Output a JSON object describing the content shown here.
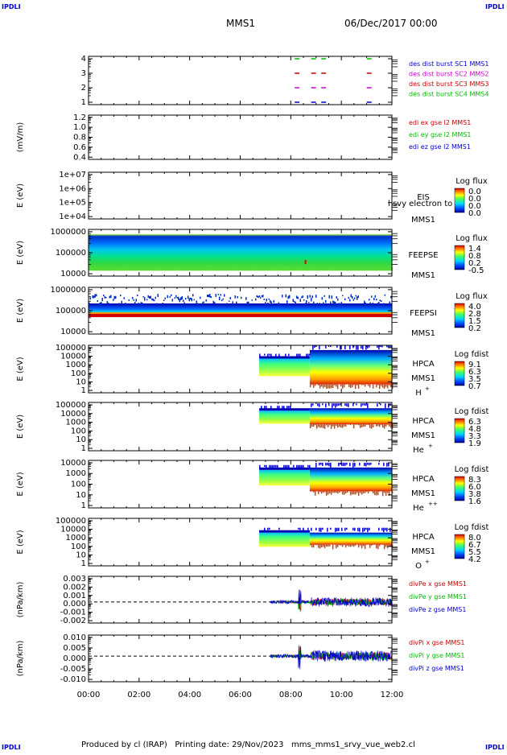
{
  "corner_labels": {
    "tl": "IPDLI",
    "tr": "IPDLI",
    "bl": "IPDLI",
    "br": "IPDLI"
  },
  "header": {
    "mission": "MMS1",
    "datetime": "06/Dec/2017 00:00"
  },
  "footer": {
    "text": "Produced by cl (IRAP)   Printing date: 29/Nov/2023   mms_mms1_srvy_vue_web2.cl"
  },
  "time_axis": [
    "00:00",
    "02:00",
    "04:00",
    "06:00",
    "08:00",
    "10:00",
    "12:00"
  ],
  "colors": {
    "blue": "#0000cc",
    "magenta": "#cc00cc",
    "red": "#cc0000",
    "green": "#00bb00"
  },
  "chart_data": [
    {
      "type": "scatter",
      "id": "burst",
      "yticks": [
        "4",
        "3",
        "2",
        "1"
      ],
      "legend": [
        {
          "text": "des dist burst SC1 MMS1",
          "color": "#0000cc"
        },
        {
          "text": "des dist burst SC2 MMS2",
          "color": "#cc00cc"
        },
        {
          "text": "des dist burst SC3 MMS3",
          "color": "#cc0000"
        },
        {
          "text": "des dist burst SC4 MMS4",
          "color": "#00bb00"
        }
      ],
      "series": [
        {
          "y": 4,
          "color": "#00bb00",
          "t": [
            8.25,
            8.9,
            9.3,
            11.1
          ]
        },
        {
          "y": 3,
          "color": "#cc0000",
          "t": [
            8.25,
            8.9,
            9.3,
            11.1
          ]
        },
        {
          "y": 2,
          "color": "#cc00cc",
          "t": [
            8.25,
            8.9,
            9.3,
            11.1
          ]
        },
        {
          "y": 1,
          "color": "#0000cc",
          "t": [
            8.25,
            8.9,
            9.3,
            11.1
          ]
        }
      ]
    },
    {
      "type": "line",
      "id": "edi",
      "ylabel": "(mV/m)",
      "yticks": [
        "1.2",
        "1.0",
        "0.8",
        "0.6",
        "0.4"
      ],
      "legend": [
        {
          "text": "edi ex gse l2 MMS1",
          "color": "#cc0000"
        },
        {
          "text": "edi ey gse l2 MMS1",
          "color": "#00bb00"
        },
        {
          "text": "edi ez gse l2 MMS1",
          "color": "#0000cc"
        }
      ]
    },
    {
      "type": "heatmap",
      "id": "eis",
      "ylabel": "E (eV)",
      "yticks": [
        "1e+07",
        "1e+06",
        "1e+05",
        "1e+04"
      ],
      "inst": "EIS",
      "sc": "MMS1",
      "overlay": "l svy electron to",
      "cbar_title": "Log flux",
      "cbar": [
        "0.0",
        "0.0",
        "0.0",
        "0.0"
      ]
    },
    {
      "type": "heatmap",
      "id": "feepse",
      "ylabel": "E (eV)",
      "yticks": [
        "1000000",
        "100000",
        "10000"
      ],
      "inst": "FEEPSE",
      "sc": "MMS1",
      "cbar_title": "Log flux",
      "cbar": [
        "1.4",
        "0.8",
        "0.2",
        "-0.5"
      ]
    },
    {
      "type": "heatmap",
      "id": "feepsi",
      "ylabel": "E (eV)",
      "yticks": [
        "1000000",
        "100000",
        "10000"
      ],
      "inst": "FEEPSI",
      "sc": "MMS1",
      "cbar_title": "Log flux",
      "cbar": [
        "4.0",
        "2.8",
        "1.5",
        "0.2"
      ]
    },
    {
      "type": "heatmap",
      "id": "hpca_h",
      "ylabel": "E (eV)",
      "yticks": [
        "100000",
        "10000",
        "1000",
        "100",
        "10",
        "1"
      ],
      "inst": "HPCA",
      "sc": "MMS1",
      "species": "H",
      "sup": "+",
      "cbar_title": "Log fdist",
      "cbar": [
        "9.1",
        "6.3",
        "3.5",
        "0.7"
      ]
    },
    {
      "type": "heatmap",
      "id": "hpca_he",
      "ylabel": "E (eV)",
      "yticks": [
        "100000",
        "10000",
        "1000",
        "100",
        "10",
        "1"
      ],
      "inst": "HPCA",
      "sc": "MMS1",
      "species": "He",
      "sup": "+",
      "cbar_title": "Log fdist",
      "cbar": [
        "6.3",
        "4.8",
        "3.3",
        "1.9"
      ]
    },
    {
      "type": "heatmap",
      "id": "hpca_he2",
      "ylabel": "E (eV)",
      "yticks": [
        "10000",
        "1000",
        "100",
        "10",
        "1"
      ],
      "inst": "HPCA",
      "sc": "MMS1",
      "species": "He",
      "sup": "++",
      "cbar_title": "Log fdist",
      "cbar": [
        "8.3",
        "6.0",
        "3.8",
        "1.6"
      ]
    },
    {
      "type": "heatmap",
      "id": "hpca_o",
      "ylabel": "E (eV)",
      "yticks": [
        "100000",
        "10000",
        "1000",
        "100",
        "10",
        "1"
      ],
      "inst": "HPCA",
      "sc": "MMS1",
      "species": "O",
      "sup": "+",
      "cbar_title": "Log fdist",
      "cbar": [
        "8.0",
        "6.7",
        "5.5",
        "4.2"
      ]
    },
    {
      "type": "line",
      "id": "divpe",
      "ylabel": "(nPa/km)",
      "yticks": [
        "0.003",
        "0.002",
        "0.001",
        "0.000",
        "-0.001",
        "-0.002"
      ],
      "legend": [
        {
          "text": "divPe x gse MMS1",
          "color": "#cc0000"
        },
        {
          "text": "divPe y gse MMS1",
          "color": "#00bb00"
        },
        {
          "text": "divPe z gse MMS1",
          "color": "#0000cc"
        }
      ]
    },
    {
      "type": "line",
      "id": "divpi",
      "ylabel": "(nPa/km)",
      "yticks": [
        "0.010",
        "0.005",
        "0.000",
        "-0.005",
        "-0.010"
      ],
      "legend": [
        {
          "text": "divPi x gse MMS1",
          "color": "#cc0000"
        },
        {
          "text": "divPi y gse MMS1",
          "color": "#00bb00"
        },
        {
          "text": "divPi z gse MMS1",
          "color": "#0000cc"
        }
      ]
    }
  ]
}
